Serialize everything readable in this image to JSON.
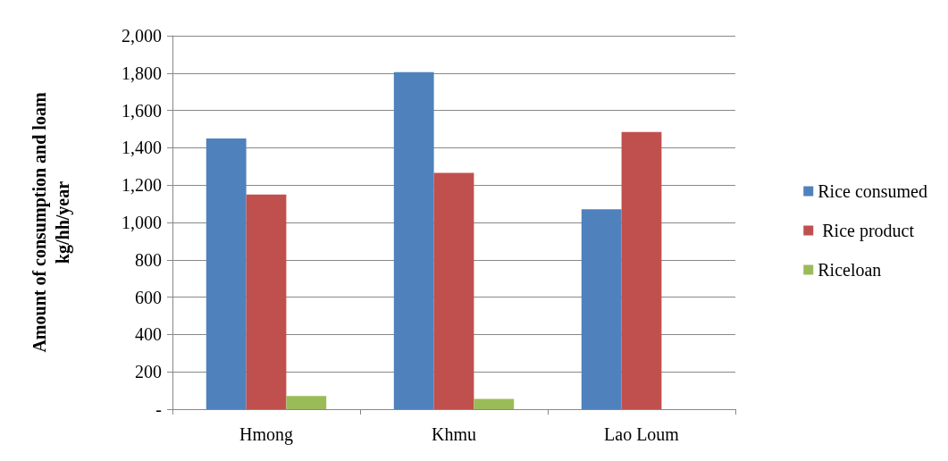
{
  "chart_data": {
    "type": "bar",
    "ylabel": "Amount of consumption and loam\nkg/hh/year",
    "categories": [
      "Hmong",
      "Khmu",
      "Lao Loum"
    ],
    "series": [
      {
        "name": "Rice consumed",
        "color": "#4f81bd",
        "values": [
          1450,
          1805,
          1070
        ]
      },
      {
        "name": " Rice product",
        "color": "#c0504d",
        "values": [
          1150,
          1265,
          1485
        ]
      },
      {
        "name": "Riceloan",
        "color": "#9bbb59",
        "values": [
          70,
          55,
          0
        ]
      }
    ],
    "ylim": [
      0,
      2000
    ],
    "yticks": [
      {
        "value": 0,
        "label": "-"
      },
      {
        "value": 200,
        "label": "200"
      },
      {
        "value": 400,
        "label": "400"
      },
      {
        "value": 600,
        "label": "600"
      },
      {
        "value": 800,
        "label": "800"
      },
      {
        "value": 1000,
        "label": "1,000"
      },
      {
        "value": 1200,
        "label": "1,200"
      },
      {
        "value": 1400,
        "label": "1,400"
      },
      {
        "value": 1600,
        "label": "1,600"
      },
      {
        "value": 1800,
        "label": "1,800"
      },
      {
        "value": 2000,
        "label": "2,000"
      }
    ],
    "grid": "y",
    "legend": "right"
  }
}
